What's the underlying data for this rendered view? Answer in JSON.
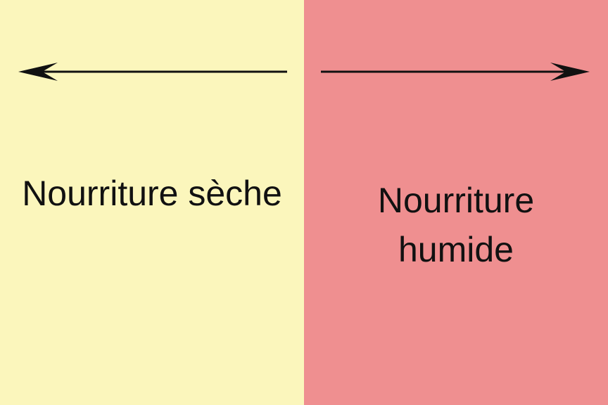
{
  "panels": {
    "left": {
      "label": "Nourriture sèche",
      "color": "#fbf6bc",
      "arrow_direction": "left"
    },
    "right": {
      "label": "Nourriture humide",
      "color": "#ef8f90",
      "arrow_direction": "right"
    }
  },
  "colors": {
    "arrow": "#111111",
    "text": "#111111"
  }
}
